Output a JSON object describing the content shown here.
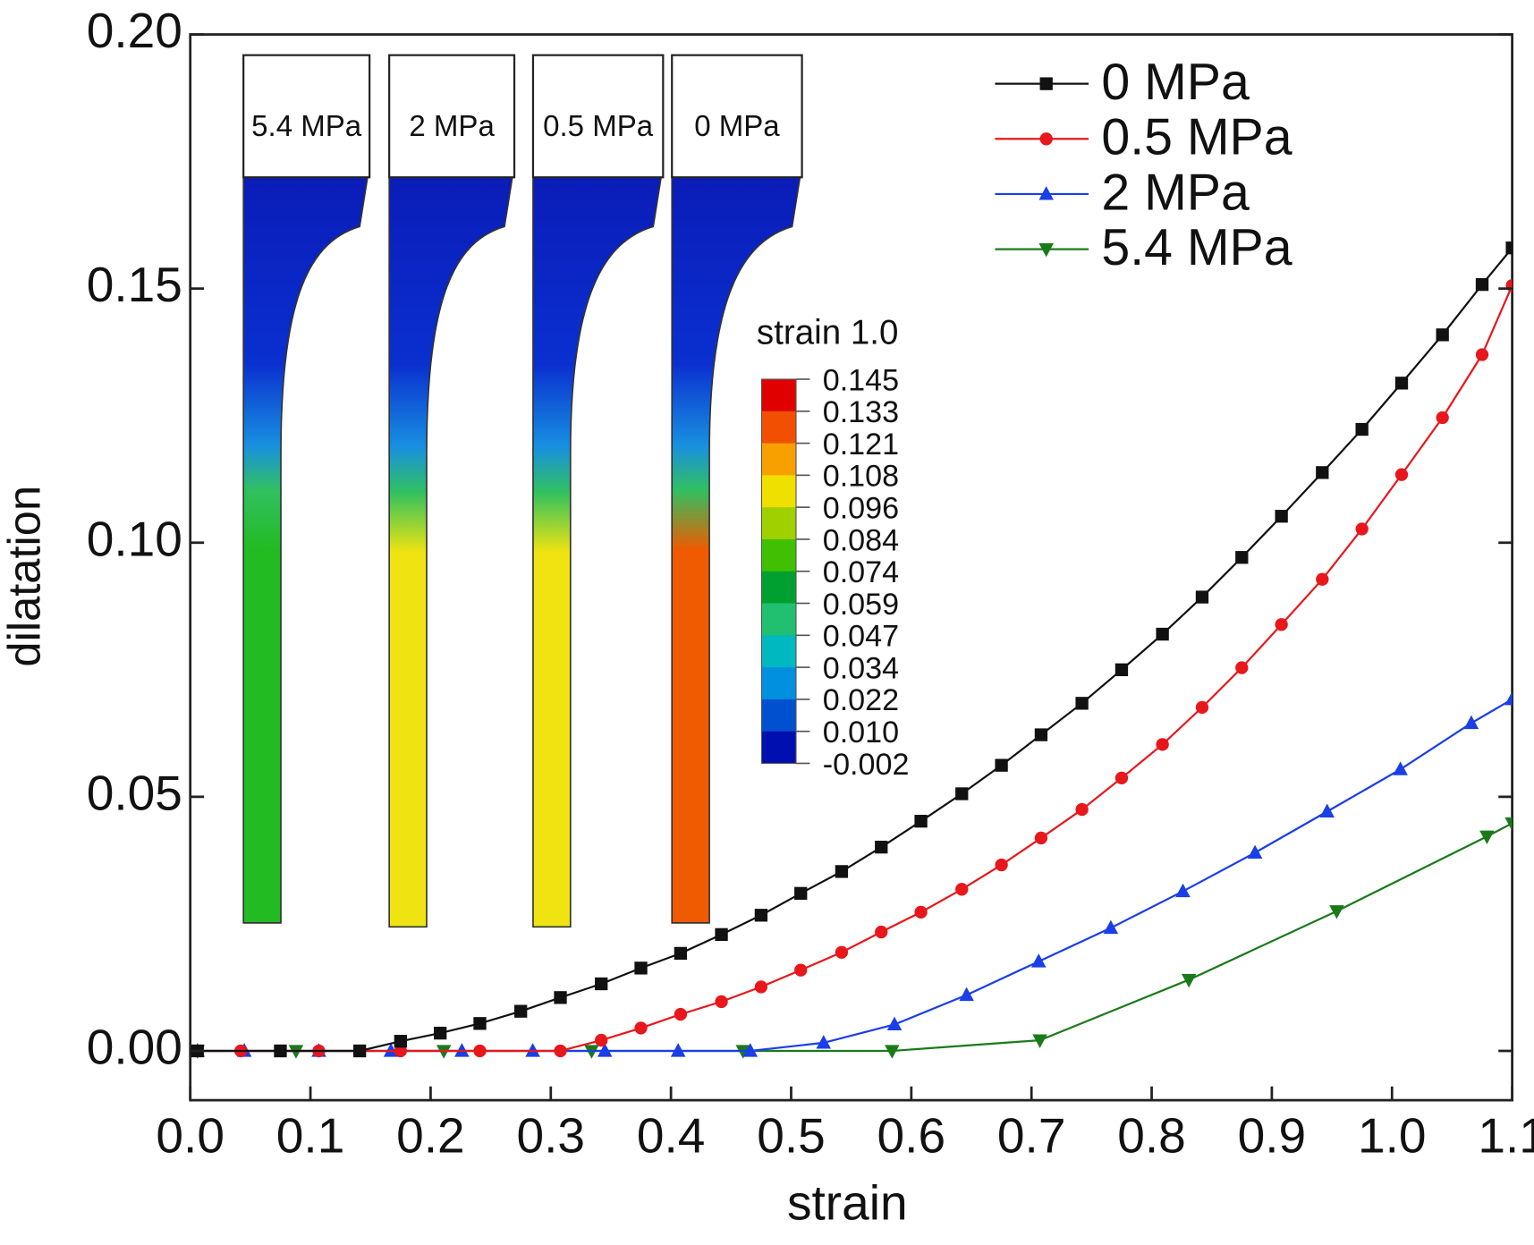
{
  "chart_data": {
    "type": "line",
    "xlabel": "strain",
    "ylabel": "dilatation",
    "xlim": [
      0,
      1.1
    ],
    "ylim": [
      -0.0097,
      0.2
    ],
    "xticks": [
      {
        "value": 0,
        "label": "0.0"
      },
      0.1,
      0.2,
      0.3,
      0.4,
      0.5,
      0.6,
      0.7,
      0.8,
      0.9,
      {
        "value": 1,
        "label": "1.0"
      },
      1.1
    ],
    "yticks": [
      {
        "value": 0,
        "label": "0.00"
      },
      0.05,
      {
        "value": 0.1,
        "label": "0.10"
      },
      0.15,
      {
        "value": 0.2,
        "label": "0.20"
      }
    ],
    "legend": "top-right",
    "series": [
      {
        "name": "0 MPa",
        "color": "#111111",
        "marker": "square",
        "x": [
          0.006,
          0.075,
          0.141,
          0.175,
          0.208,
          0.241,
          0.275,
          0.308,
          0.342,
          0.375,
          0.408,
          0.442,
          0.475,
          0.508,
          0.542,
          0.575,
          0.608,
          0.642,
          0.675,
          0.708,
          0.742,
          0.775,
          0.809,
          0.842,
          0.875,
          0.908,
          0.942,
          0.975,
          1.008,
          1.042,
          1.075,
          1.1
        ],
        "values": [
          0,
          0,
          0,
          0.0019,
          0.0035,
          0.0054,
          0.0078,
          0.0105,
          0.0132,
          0.0163,
          0.0192,
          0.0229,
          0.0267,
          0.031,
          0.0353,
          0.0401,
          0.0452,
          0.0506,
          0.0562,
          0.0622,
          0.0684,
          0.075,
          0.082,
          0.0893,
          0.0971,
          0.1052,
          0.1138,
          0.1223,
          0.1314,
          0.1409,
          0.1508,
          0.158
        ]
      },
      {
        "name": "0.5 MPa",
        "color": "#e8171b",
        "marker": "circle",
        "x": [
          0.006,
          0.042,
          0.075,
          0.107,
          0.175,
          0.241,
          0.308,
          0.342,
          0.375,
          0.408,
          0.442,
          0.475,
          0.508,
          0.542,
          0.575,
          0.608,
          0.642,
          0.675,
          0.708,
          0.742,
          0.775,
          0.809,
          0.842,
          0.875,
          0.908,
          0.942,
          0.975,
          1.008,
          1.042,
          1.075,
          1.1
        ],
        "values": [
          0,
          0,
          0,
          0,
          0,
          0,
          0,
          0.0021,
          0.0045,
          0.0072,
          0.0097,
          0.0126,
          0.0159,
          0.0194,
          0.0234,
          0.0273,
          0.0318,
          0.0366,
          0.0419,
          0.0475,
          0.0537,
          0.0603,
          0.0676,
          0.0754,
          0.0839,
          0.0928,
          0.1027,
          0.1134,
          0.1246,
          0.137,
          0.1506
        ]
      },
      {
        "name": "2 MPa",
        "color": "#1a3ee8",
        "marker": "triangle",
        "x": [
          0.006,
          0.045,
          0.107,
          0.167,
          0.226,
          0.285,
          0.345,
          0.406,
          0.466,
          0.527,
          0.586,
          0.646,
          0.706,
          0.766,
          0.826,
          0.886,
          0.946,
          1.007,
          1.066,
          1.1
        ],
        "values": [
          0,
          0,
          0,
          0,
          0,
          0,
          0,
          0,
          0,
          0.0016,
          0.0052,
          0.011,
          0.0176,
          0.0242,
          0.0314,
          0.039,
          0.0471,
          0.0554,
          0.0645,
          0.0692
        ]
      },
      {
        "name": "5.4 MPa",
        "color": "#1a7a1a",
        "marker": "triangle-down",
        "x": [
          0.006,
          0.088,
          0.211,
          0.334,
          0.46,
          0.584,
          0.707,
          0.831,
          0.954,
          1.079,
          1.1
        ],
        "values": [
          0,
          0,
          0,
          0,
          0,
          0,
          0.0021,
          0.014,
          0.0275,
          0.0422,
          0.0448
        ]
      }
    ],
    "insets": [
      "5.4 MPa",
      "2 MPa",
      "0.5 MPa",
      "0 MPa"
    ],
    "colorbar": {
      "title": "strain 1.0",
      "ticks": [
        0.145,
        0.133,
        0.121,
        0.108,
        0.096,
        0.084,
        0.074,
        0.059,
        0.047,
        0.034,
        0.022,
        {
          "value": 0.01,
          "label": "0.010"
        },
        -0.002
      ],
      "colors": [
        "#e00000",
        "#f05000",
        "#f8a000",
        "#f0e000",
        "#a0d000",
        "#40c000",
        "#00a030",
        "#20c070",
        "#00b8c0",
        "#0090e0",
        "#0050d0",
        "#0010b0"
      ]
    }
  }
}
